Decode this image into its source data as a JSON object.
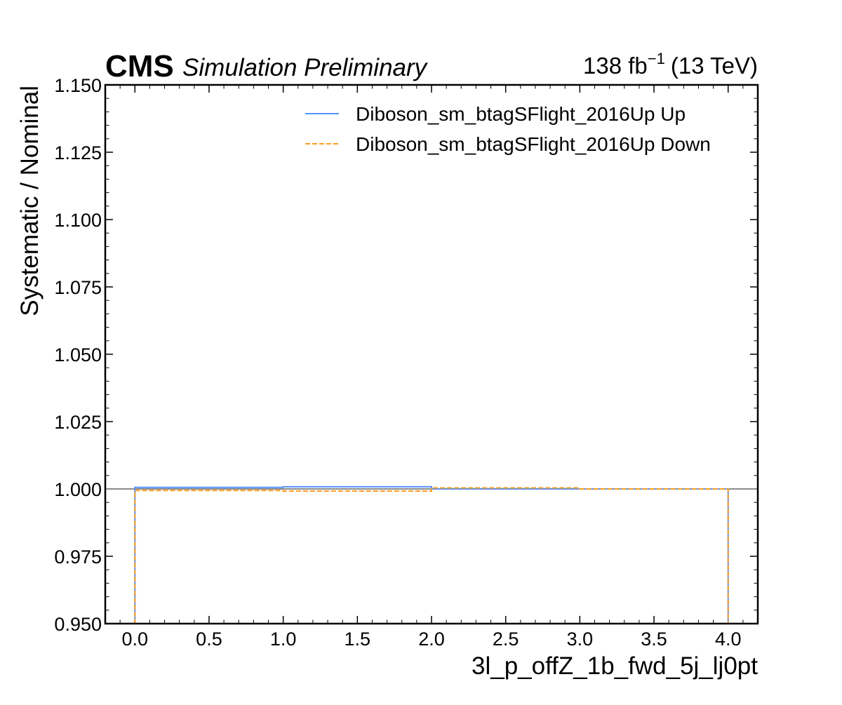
{
  "header": {
    "experiment": "CMS",
    "status": "Simulation Preliminary",
    "lumi_value": "138 fb",
    "lumi_exponent": "−1",
    "energy": "(13 TeV)"
  },
  "chart_data": {
    "type": "line",
    "style": "step",
    "xlabel": "3l_p_offZ_1b_fwd_5j_lj0pt",
    "ylabel": "Systematic / Nominal",
    "xlim": [
      -0.2,
      4.2
    ],
    "ylim": [
      0.95,
      1.15
    ],
    "x_ticks": [
      "0.0",
      "0.5",
      "1.0",
      "1.5",
      "2.0",
      "2.5",
      "3.0",
      "3.5",
      "4.0"
    ],
    "y_ticks": [
      "0.950",
      "0.975",
      "1.000",
      "1.025",
      "1.050",
      "1.075",
      "1.100",
      "1.125",
      "1.150"
    ],
    "reference_line": 1.0,
    "bin_edges": [
      0,
      1,
      2,
      3,
      4
    ],
    "series": [
      {
        "name": "Diboson_sm_btagSFlight_2016Up Up",
        "color": "#5790fc",
        "linestyle": "solid",
        "values": [
          1.0006,
          1.0008,
          1.0,
          1.0
        ]
      },
      {
        "name": "Diboson_sm_btagSFlight_2016Up Down",
        "color": "#f89c20",
        "linestyle": "dashed",
        "values": [
          0.9994,
          0.9992,
          1.0004,
          1.0
        ]
      }
    ],
    "reference_color": "#8a8a8a",
    "grid": false,
    "legend_position": "top-right"
  }
}
